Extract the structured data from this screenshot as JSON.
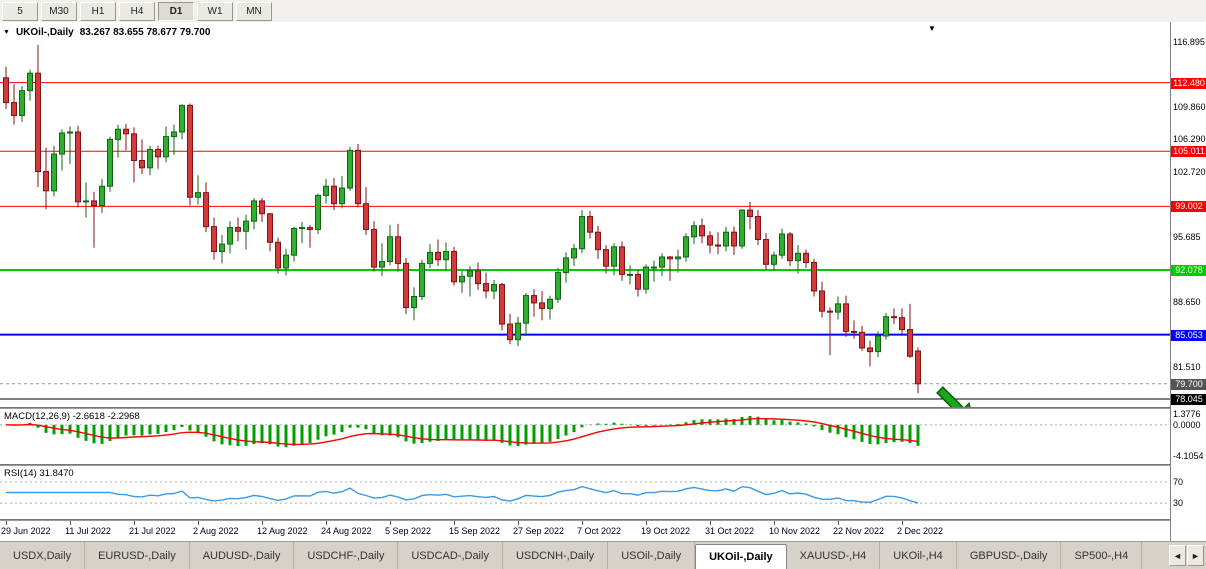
{
  "toolbar": {
    "timeframes": [
      {
        "label": "5",
        "active": false
      },
      {
        "label": "M30",
        "active": false
      },
      {
        "label": "H1",
        "active": false
      },
      {
        "label": "H4",
        "active": false
      },
      {
        "label": "D1",
        "active": true
      },
      {
        "label": "W1",
        "active": false
      },
      {
        "label": "MN",
        "active": false
      }
    ]
  },
  "chart": {
    "title_symbol": "UKOil-,Daily",
    "title_ohlc": "83.267 83.655 78.677 79.700",
    "axis_labels": [
      "116.895",
      "109.860",
      "106.290",
      "102.720",
      "95.685",
      "88.650",
      "81.510"
    ],
    "hlines": [
      {
        "price": 112.48,
        "label": "112.480",
        "color": "#ff0000",
        "lw": 1
      },
      {
        "price": 105.011,
        "label": "105.011",
        "color": "#ff0000",
        "lw": 1
      },
      {
        "price": 99.002,
        "label": "99.002",
        "color": "#ff0000",
        "lw": 1
      },
      {
        "price": 92.078,
        "label": "92.078",
        "color": "#00cc00",
        "lw": 2
      },
      {
        "price": 85.053,
        "label": "85.053",
        "color": "#0000ff",
        "lw": 2
      },
      {
        "price": 78.045,
        "label": "78.045",
        "color": "#000000",
        "lw": 1
      }
    ],
    "bid": {
      "price": 79.7,
      "label": "79.700",
      "color": "#555555"
    }
  },
  "macd": {
    "label": "MACD(12,26,9) -2.6618 -2.2968",
    "fast": 12,
    "slow": 26,
    "signal": 9,
    "axis_labels": [
      {
        "value": 1.3776,
        "text": "1.3776"
      },
      {
        "value": 0,
        "text": "0.0000"
      },
      {
        "value": -4.1054,
        "text": "-4.1054"
      }
    ]
  },
  "rsi": {
    "label": "RSI(14) 31.8470",
    "period": 14,
    "levels": [
      {
        "value": 70,
        "text": "70"
      },
      {
        "value": 30,
        "text": "30"
      }
    ]
  },
  "tabs": [
    {
      "label": "USDX,Daily",
      "active": false
    },
    {
      "label": "EURUSD-,Daily",
      "active": false
    },
    {
      "label": "AUDUSD-,Daily",
      "active": false
    },
    {
      "label": "USDCHF-,Daily",
      "active": false
    },
    {
      "label": "USDCAD-,Daily",
      "active": false
    },
    {
      "label": "USDCNH-,Daily",
      "active": false
    },
    {
      "label": "USOil-,Daily",
      "active": false
    },
    {
      "label": "UKOil-,Daily",
      "active": true
    },
    {
      "label": "XAUUSD-,H4",
      "active": false
    },
    {
      "label": "UKOil-,H4",
      "active": false
    },
    {
      "label": "GBPUSD-,Daily",
      "active": false
    },
    {
      "label": "SP500-,H4",
      "active": false
    }
  ],
  "icons": {
    "tab_scroll_left": "◄",
    "tab_scroll_right": "►",
    "collapse_marker": "▼",
    "end_marker": "▼"
  },
  "colors": {
    "up_fill": "#2fae2f",
    "up_stroke": "#156415",
    "down_fill": "#d13b3b",
    "down_stroke": "#7e1414",
    "macd_hist": "#00a000",
    "macd_signal": "#ff0000",
    "rsi_line": "#3a99e8",
    "level_dash": "#aaaaaa",
    "arrow": "#18a818",
    "arrow_stroke": "#0a5c0a"
  },
  "chart_data": {
    "type": "candlestick",
    "symbol": "UKOil-,Daily",
    "x_labels": [
      {
        "i": 0,
        "t": "29 Jun 2022"
      },
      {
        "i": 8,
        "t": "11 Jul 2022"
      },
      {
        "i": 16,
        "t": "21 Jul 2022"
      },
      {
        "i": 24,
        "t": "2 Aug 2022"
      },
      {
        "i": 32,
        "t": "12 Aug 2022"
      },
      {
        "i": 40,
        "t": "24 Aug 2022"
      },
      {
        "i": 48,
        "t": "5 Sep 2022"
      },
      {
        "i": 56,
        "t": "15 Sep 2022"
      },
      {
        "i": 64,
        "t": "27 Sep 2022"
      },
      {
        "i": 72,
        "t": "7 Oct 2022"
      },
      {
        "i": 80,
        "t": "19 Oct 2022"
      },
      {
        "i": 88,
        "t": "31 Oct 2022"
      },
      {
        "i": 96,
        "t": "10 Nov 2022"
      },
      {
        "i": 104,
        "t": "22 Nov 2022"
      },
      {
        "i": 112,
        "t": "2 Dec 2022"
      }
    ],
    "candles": [
      [
        113.0,
        114.2,
        109.6,
        110.3
      ],
      [
        110.3,
        112.3,
        107.9,
        108.9
      ],
      [
        108.9,
        112.1,
        108.2,
        111.6
      ],
      [
        111.6,
        113.9,
        110.5,
        113.5
      ],
      [
        113.5,
        116.6,
        101.1,
        102.8
      ],
      [
        102.8,
        105.4,
        98.7,
        100.7
      ],
      [
        100.7,
        105.6,
        100.1,
        104.7
      ],
      [
        104.7,
        107.4,
        102.9,
        107.0
      ],
      [
        107.0,
        107.7,
        103.6,
        107.1
      ],
      [
        107.1,
        107.8,
        98.9,
        99.5
      ],
      [
        99.5,
        101.6,
        97.8,
        99.6
      ],
      [
        99.6,
        100.6,
        94.5,
        99.1
      ],
      [
        99.1,
        102.0,
        98.3,
        101.2
      ],
      [
        101.2,
        106.6,
        100.6,
        106.3
      ],
      [
        106.3,
        107.9,
        104.3,
        107.4
      ],
      [
        107.4,
        108.0,
        105.1,
        106.9
      ],
      [
        106.9,
        107.6,
        101.6,
        104.0
      ],
      [
        104.0,
        106.3,
        102.5,
        103.2
      ],
      [
        103.2,
        105.6,
        102.4,
        105.2
      ],
      [
        105.2,
        105.6,
        103.1,
        104.4
      ],
      [
        104.4,
        107.7,
        103.8,
        106.6
      ],
      [
        106.6,
        107.9,
        104.6,
        107.1
      ],
      [
        107.1,
        110.1,
        106.3,
        110.0
      ],
      [
        110.0,
        110.2,
        99.1,
        100.0
      ],
      [
        100.0,
        102.4,
        99.2,
        100.5
      ],
      [
        100.5,
        101.6,
        96.2,
        96.8
      ],
      [
        96.8,
        97.8,
        93.2,
        94.1
      ],
      [
        94.1,
        95.9,
        92.8,
        94.9
      ],
      [
        94.9,
        97.4,
        93.9,
        96.7
      ],
      [
        96.7,
        97.8,
        95.2,
        96.3
      ],
      [
        96.3,
        98.1,
        94.3,
        97.4
      ],
      [
        97.4,
        99.9,
        96.5,
        99.6
      ],
      [
        99.6,
        99.9,
        97.3,
        98.2
      ],
      [
        98.2,
        98.3,
        94.1,
        95.1
      ],
      [
        95.1,
        95.6,
        91.7,
        92.3
      ],
      [
        92.3,
        94.4,
        91.5,
        93.7
      ],
      [
        93.7,
        96.8,
        93.0,
        96.6
      ],
      [
        96.6,
        97.3,
        95.0,
        96.7
      ],
      [
        96.7,
        97.0,
        94.5,
        96.5
      ],
      [
        96.5,
        100.4,
        96.0,
        100.2
      ],
      [
        100.2,
        102.0,
        99.3,
        101.2
      ],
      [
        101.2,
        102.1,
        98.6,
        99.3
      ],
      [
        99.3,
        102.3,
        98.8,
        101.0
      ],
      [
        101.0,
        105.5,
        100.7,
        105.1
      ],
      [
        105.1,
        105.8,
        98.9,
        99.3
      ],
      [
        99.3,
        101.1,
        95.9,
        96.5
      ],
      [
        96.5,
        97.4,
        91.9,
        92.4
      ],
      [
        92.4,
        95.0,
        91.4,
        93.0
      ],
      [
        93.0,
        97.0,
        92.6,
        95.7
      ],
      [
        95.7,
        97.1,
        91.9,
        92.8
      ],
      [
        92.8,
        93.4,
        87.3,
        88.0
      ],
      [
        88.0,
        90.2,
        86.6,
        89.2
      ],
      [
        89.2,
        93.2,
        88.8,
        92.8
      ],
      [
        92.8,
        94.9,
        92.3,
        94.0
      ],
      [
        94.0,
        95.4,
        92.5,
        93.2
      ],
      [
        93.2,
        95.1,
        92.0,
        94.1
      ],
      [
        94.1,
        94.6,
        90.4,
        90.8
      ],
      [
        90.8,
        92.0,
        89.6,
        91.4
      ],
      [
        91.4,
        92.5,
        89.2,
        92.0
      ],
      [
        92.0,
        92.9,
        89.9,
        90.6
      ],
      [
        90.6,
        91.8,
        89.0,
        89.8
      ],
      [
        89.8,
        91.0,
        88.9,
        90.5
      ],
      [
        90.5,
        90.7,
        85.5,
        86.2
      ],
      [
        86.2,
        87.3,
        84.0,
        84.5
      ],
      [
        84.5,
        87.0,
        83.8,
        86.3
      ],
      [
        86.3,
        89.6,
        84.9,
        89.3
      ],
      [
        89.3,
        90.0,
        87.0,
        88.5
      ],
      [
        88.5,
        89.8,
        86.6,
        87.9
      ],
      [
        87.9,
        89.3,
        86.7,
        88.9
      ],
      [
        88.9,
        92.3,
        88.5,
        91.8
      ],
      [
        91.8,
        94.0,
        90.7,
        93.4
      ],
      [
        93.4,
        94.9,
        92.5,
        94.4
      ],
      [
        94.4,
        98.6,
        93.9,
        97.9
      ],
      [
        97.9,
        98.5,
        95.5,
        96.2
      ],
      [
        96.2,
        96.9,
        93.3,
        94.3
      ],
      [
        94.3,
        94.8,
        91.7,
        92.5
      ],
      [
        92.5,
        95.0,
        91.5,
        94.6
      ],
      [
        94.6,
        95.2,
        90.9,
        91.6
      ],
      [
        91.6,
        92.6,
        90.5,
        91.6
      ],
      [
        91.6,
        92.1,
        89.2,
        90.0
      ],
      [
        90.0,
        92.7,
        89.5,
        92.4
      ],
      [
        92.4,
        93.1,
        90.8,
        92.4
      ],
      [
        92.4,
        93.9,
        91.4,
        93.5
      ],
      [
        93.5,
        93.6,
        90.9,
        93.3
      ],
      [
        93.3,
        94.3,
        91.8,
        93.5
      ],
      [
        93.5,
        96.1,
        93.0,
        95.7
      ],
      [
        95.7,
        97.4,
        94.9,
        96.9
      ],
      [
        96.9,
        97.7,
        95.0,
        95.8
      ],
      [
        95.8,
        96.3,
        93.9,
        94.8
      ],
      [
        94.8,
        96.2,
        93.8,
        94.7
      ],
      [
        94.7,
        96.8,
        94.1,
        96.2
      ],
      [
        96.2,
        96.8,
        93.7,
        94.7
      ],
      [
        94.7,
        98.7,
        94.4,
        98.6
      ],
      [
        98.6,
        99.5,
        96.5,
        97.9
      ],
      [
        97.9,
        98.6,
        94.8,
        95.4
      ],
      [
        95.4,
        96.1,
        92.1,
        92.7
      ],
      [
        92.7,
        94.1,
        92.0,
        93.7
      ],
      [
        93.7,
        96.6,
        93.3,
        96.0
      ],
      [
        96.0,
        96.2,
        92.5,
        93.1
      ],
      [
        93.1,
        94.8,
        91.7,
        93.9
      ],
      [
        93.9,
        94.3,
        92.3,
        92.9
      ],
      [
        92.9,
        93.3,
        89.2,
        89.8
      ],
      [
        89.8,
        90.8,
        86.9,
        87.6
      ],
      [
        87.6,
        88.0,
        82.8,
        87.5
      ],
      [
        87.5,
        89.2,
        86.7,
        88.4
      ],
      [
        88.4,
        89.3,
        84.8,
        85.4
      ],
      [
        85.4,
        86.6,
        84.6,
        85.3
      ],
      [
        85.3,
        86.0,
        83.3,
        83.6
      ],
      [
        83.6,
        84.4,
        81.6,
        83.2
      ],
      [
        83.2,
        85.4,
        82.6,
        84.9
      ],
      [
        84.9,
        87.4,
        84.5,
        87.0
      ],
      [
        87.0,
        87.9,
        86.2,
        86.9
      ],
      [
        86.9,
        87.9,
        85.1,
        85.6
      ],
      [
        85.6,
        88.4,
        82.5,
        82.7
      ],
      [
        83.267,
        83.655,
        78.677,
        79.7
      ]
    ]
  }
}
